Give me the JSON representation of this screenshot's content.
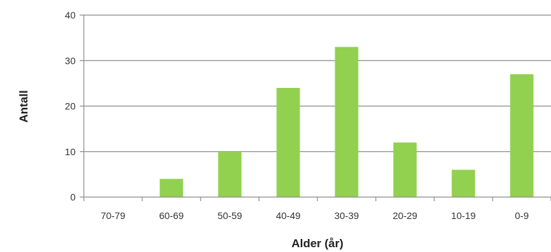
{
  "chart_data": {
    "type": "bar",
    "title": "",
    "xlabel": "Alder (år)",
    "ylabel": "Antall",
    "categories": [
      "70-79",
      "60-69",
      "50-59",
      "40-49",
      "30-39",
      "20-29",
      "10-19",
      "0-9"
    ],
    "values": [
      0,
      4,
      10,
      24,
      33,
      12,
      6,
      27
    ],
    "ylim": [
      0,
      40
    ],
    "yticks": [
      0,
      10,
      20,
      30,
      40
    ],
    "grid": true,
    "legend": "none",
    "bar_color": "#92d050",
    "grid_color": "#8c8c8c"
  }
}
